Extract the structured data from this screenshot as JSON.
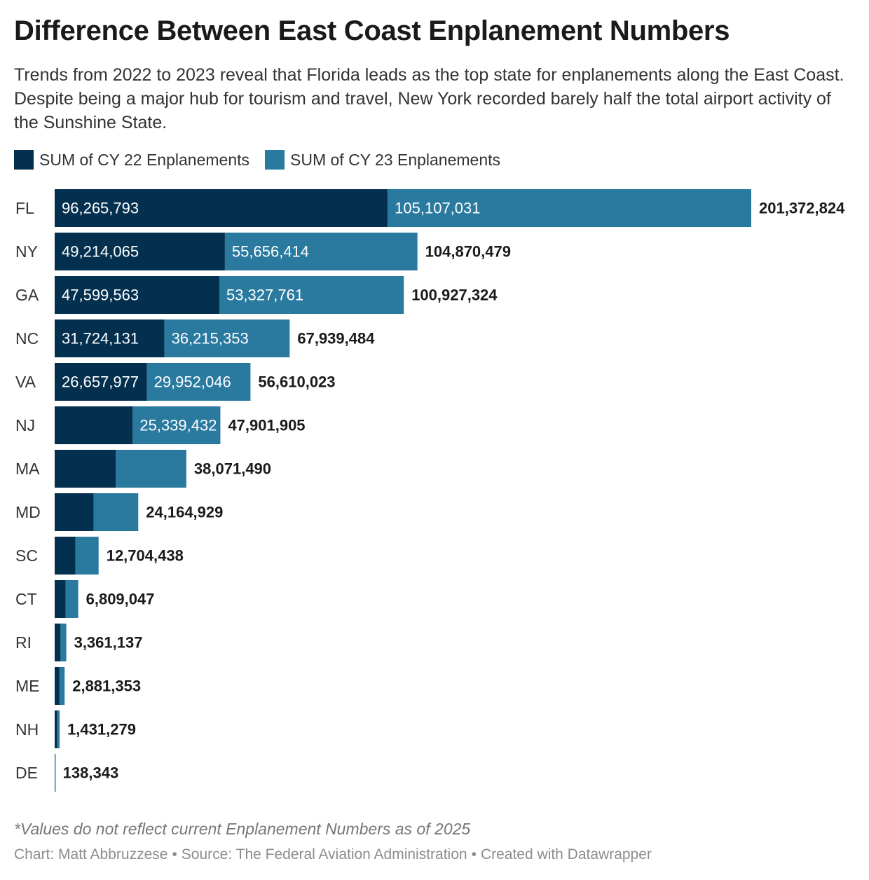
{
  "title": "Difference Between East Coast Enplanement Numbers",
  "subtitle": "Trends from 2022 to 2023 reveal that Florida leads as the top state for enplanements along the East Coast. Despite being a major hub for tourism and travel, New York recorded barely half the total airport activity of the Sunshine State.",
  "colors": {
    "cy22": "#04304f",
    "cy23": "#2a7aa0",
    "text": "#1a1a1a"
  },
  "legend": {
    "cy22_label": "SUM of CY 22 Enplanements",
    "cy23_label": "SUM of CY 23 Enplanements"
  },
  "note": "*Values do not reflect current Enplanement Numbers as of 2025",
  "footer": {
    "credit": "Chart: Matt Abbruzzese",
    "source": "Source: The Federal Aviation Administration",
    "tool": "Created with Datawrapper",
    "separator": "•"
  },
  "chart_data": {
    "type": "bar",
    "orientation": "horizontal",
    "stacked": true,
    "title": "Difference Between East Coast Enplanement Numbers",
    "xlabel": "",
    "ylabel": "",
    "grid": false,
    "legend_position": "top-left",
    "categories": [
      "FL",
      "NY",
      "GA",
      "NC",
      "VA",
      "NJ",
      "MA",
      "MD",
      "SC",
      "CT",
      "RI",
      "ME",
      "NH",
      "DE"
    ],
    "series": [
      {
        "name": "SUM of CY 22 Enplanements",
        "values": [
          96265793,
          49214065,
          47599563,
          31724131,
          26657977,
          22562473,
          17700000,
          11300000,
          6000000,
          3200000,
          1700000,
          1400000,
          700000,
          70000
        ],
        "labels": [
          "96,265,793",
          "49,214,065",
          "47,599,563",
          "31,724,131",
          "26,657,977",
          "",
          "",
          "",
          "",
          "",
          "",
          "",
          "",
          ""
        ]
      },
      {
        "name": "SUM of CY 23 Enplanements",
        "values": [
          105107031,
          55656414,
          53327761,
          36215353,
          29952046,
          25339432,
          20371490,
          12864929,
          6704438,
          3609047,
          1661137,
          1481353,
          731279,
          68343
        ],
        "labels": [
          "105,107,031",
          "55,656,414",
          "53,327,761",
          "36,215,353",
          "29,952,046",
          "25,339,432",
          "",
          "",
          "",
          "",
          "",
          "",
          "",
          ""
        ]
      }
    ],
    "totals": [
      201372824,
      104870479,
      100927324,
      67939484,
      56610023,
      47901905,
      38071490,
      24164929,
      12704438,
      6809047,
      3361137,
      2881353,
      1431279,
      138343
    ],
    "total_labels": [
      "201,372,824",
      "104,870,479",
      "100,927,324",
      "67,939,484",
      "56,610,023",
      "47,901,905",
      "38,071,490",
      "24,164,929",
      "12,704,438",
      "6,809,047",
      "3,361,137",
      "2,881,353",
      "1,431,279",
      "138,343"
    ],
    "xlim": [
      0,
      201372824
    ]
  }
}
